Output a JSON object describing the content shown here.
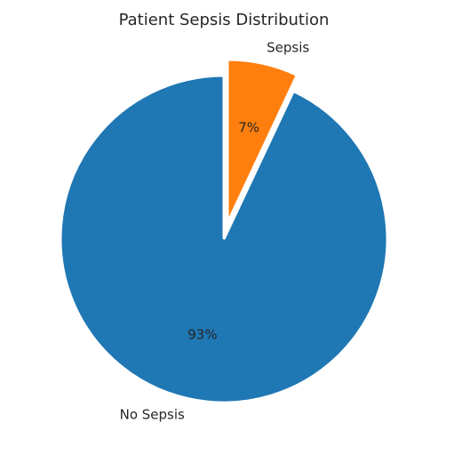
{
  "chart_data": {
    "type": "pie",
    "title": "Patient Sepsis Distribution",
    "start_angle_deg": 90,
    "direction": "counterclockwise",
    "slices": [
      {
        "label": "No Sepsis",
        "value": 93,
        "pct_label": "93%",
        "color": "#1f77b4",
        "exploded": false
      },
      {
        "label": "Sepsis",
        "value": 7,
        "pct_label": "7%",
        "color": "#ff7f0e",
        "exploded": true
      }
    ],
    "edge_color": "#ffffff"
  }
}
